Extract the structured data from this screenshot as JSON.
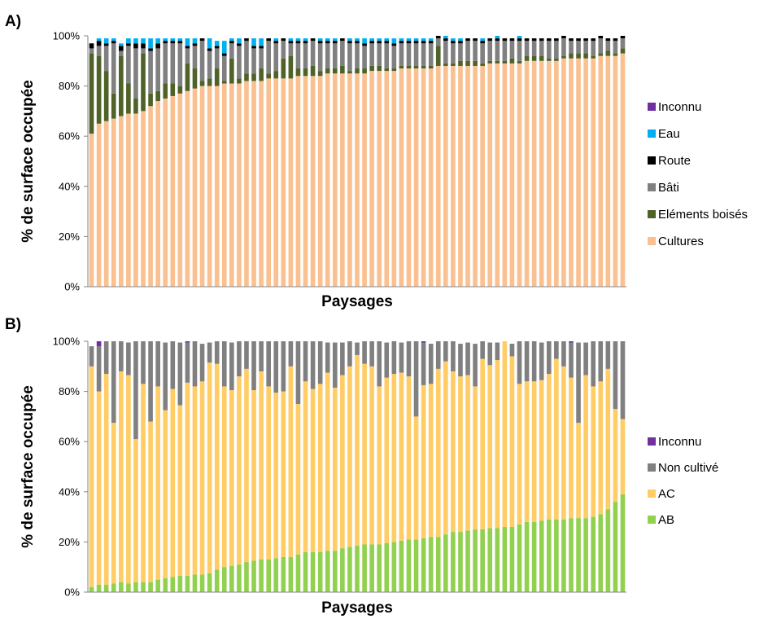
{
  "chart_data": [
    {
      "type": "bar",
      "stacked": true,
      "percent": true,
      "panel_label": "A)",
      "xlabel": "Paysages",
      "ylabel": "% de surface occupée",
      "ylim": [
        0,
        100
      ],
      "yticks": [
        "0%",
        "20%",
        "40%",
        "60%",
        "80%",
        "100%"
      ],
      "grid": false,
      "legend_position": "right",
      "legend_order": [
        "Inconnu",
        "Eau",
        "Route",
        "Bâti",
        "Eléments boisés",
        "Cultures"
      ],
      "series": [
        {
          "name": "Cultures",
          "color": "#FAC090",
          "values": [
            61,
            65,
            66,
            67,
            68,
            69,
            69,
            70,
            72,
            74,
            75,
            76,
            77,
            78,
            79,
            80,
            80,
            80,
            81,
            81,
            81,
            82,
            82,
            82,
            83,
            83,
            83,
            83,
            84,
            84,
            84,
            84,
            85,
            85,
            85,
            85,
            85,
            85,
            86,
            86,
            86,
            86,
            87,
            87,
            87,
            87,
            87,
            88,
            88,
            88,
            88,
            88,
            88,
            88,
            89,
            89,
            89,
            89,
            89,
            90,
            90,
            90,
            90,
            90,
            91,
            91,
            91,
            91,
            91,
            92,
            92,
            92,
            93
          ]
        },
        {
          "name": "Eléments boisés",
          "color": "#4F6228",
          "values": [
            32,
            27,
            20,
            10,
            24,
            12,
            6,
            23,
            5,
            4,
            6,
            5,
            3,
            11,
            8,
            2,
            3,
            7,
            1,
            10,
            2,
            3,
            3,
            5,
            2,
            3,
            8,
            9,
            3,
            3,
            4,
            2,
            2,
            2,
            3,
            1,
            2,
            2,
            2,
            2,
            1,
            1,
            1,
            1,
            1,
            1,
            1,
            8,
            1,
            1,
            2,
            2,
            2,
            1,
            1,
            1,
            1,
            2,
            1,
            2,
            2,
            2,
            1,
            1,
            1,
            2,
            2,
            2,
            1,
            1,
            2,
            1,
            2
          ]
        },
        {
          "name": "Bâti",
          "color": "#808080",
          "values": [
            2,
            4,
            10,
            20,
            2,
            15,
            20,
            2,
            17,
            17,
            16,
            16,
            17,
            6,
            9,
            16,
            11,
            8,
            10,
            6,
            13,
            13,
            10,
            8,
            13,
            11,
            7,
            5,
            10,
            10,
            10,
            11,
            10,
            10,
            10,
            11,
            10,
            9,
            9,
            9,
            10,
            9,
            9,
            9,
            9,
            9,
            9,
            3,
            9,
            8,
            7,
            8,
            8,
            8,
            8,
            8,
            8,
            7,
            8,
            6,
            6,
            6,
            7,
            7,
            7,
            5,
            5,
            5,
            6,
            6,
            4,
            5,
            4
          ]
        },
        {
          "name": "Route",
          "color": "#000000",
          "values": [
            2,
            2,
            1,
            1,
            2,
            1,
            2,
            2,
            1,
            2,
            1,
            1,
            1,
            1,
            1,
            1,
            1,
            1,
            1,
            1,
            1,
            1,
            1,
            1,
            1,
            1,
            1,
            1,
            1,
            1,
            1,
            1,
            1,
            1,
            1,
            1,
            1,
            1,
            1,
            1,
            1,
            1,
            1,
            1,
            1,
            1,
            1,
            1,
            1,
            1,
            1,
            1,
            1,
            1,
            1,
            1,
            1,
            1,
            1,
            1,
            1,
            1,
            1,
            1,
            1,
            1,
            1,
            1,
            1,
            1,
            1,
            1,
            1
          ]
        },
        {
          "name": "Eau",
          "color": "#00B0F0",
          "values": [
            0,
            1,
            2,
            1,
            1,
            2,
            2,
            2,
            4,
            2,
            1,
            1,
            1,
            3,
            2,
            0,
            4,
            2,
            5,
            1,
            2,
            0,
            3,
            3,
            0,
            1,
            0,
            1,
            1,
            1,
            0,
            1,
            1,
            1,
            0,
            1,
            1,
            2,
            1,
            1,
            1,
            2,
            1,
            1,
            1,
            1,
            1,
            0,
            1,
            1,
            1,
            0,
            0,
            1,
            0,
            1,
            0,
            0,
            1,
            0,
            0,
            0,
            0,
            0,
            0,
            0,
            0,
            0,
            0,
            0,
            0,
            0,
            0
          ]
        },
        {
          "name": "Inconnu",
          "color": "#7030A0",
          "values": [
            0,
            0,
            0,
            0,
            0,
            0,
            0,
            0,
            0,
            0,
            0,
            0,
            0,
            0,
            0,
            0,
            0,
            0,
            0,
            0,
            0,
            0,
            0,
            0,
            0,
            0,
            0,
            0,
            0,
            0,
            0,
            0,
            0,
            0,
            0,
            0,
            0,
            0,
            0,
            0,
            0,
            0,
            0,
            0,
            0,
            0,
            0,
            0,
            0,
            0,
            0,
            0,
            0,
            0,
            0,
            0,
            0,
            0,
            0,
            0,
            0,
            0,
            0,
            0,
            0,
            0,
            0,
            0,
            0,
            0,
            0,
            0,
            0
          ]
        }
      ]
    },
    {
      "type": "bar",
      "stacked": true,
      "percent": true,
      "panel_label": "B)",
      "xlabel": "Paysages",
      "ylabel": "% de surface occupée",
      "ylim": [
        0,
        100
      ],
      "yticks": [
        "0%",
        "20%",
        "40%",
        "60%",
        "80%",
        "100%"
      ],
      "grid": false,
      "legend_position": "right",
      "legend_order": [
        "Inconnu",
        "Non cultivé",
        "AC",
        "AB"
      ],
      "series": [
        {
          "name": "AB",
          "color": "#92D050",
          "values": [
            2,
            3,
            3,
            3.5,
            4,
            3.5,
            4,
            4,
            4,
            5,
            5.5,
            6,
            6.5,
            6.5,
            7,
            7,
            7.5,
            9,
            10,
            10.5,
            11,
            12,
            12.5,
            13,
            13,
            13.5,
            14,
            14,
            15,
            16,
            16,
            16,
            16.5,
            16.5,
            17.5,
            18,
            18.5,
            19,
            19,
            19,
            19.5,
            20,
            20.5,
            21,
            21,
            21.5,
            22,
            22,
            23,
            24,
            24,
            24.5,
            25,
            25,
            25.5,
            25.5,
            26,
            26,
            27,
            28,
            28,
            28.5,
            29,
            29,
            29,
            29.5,
            29.5,
            29.5,
            30,
            31,
            33,
            36,
            39
          ]
        },
        {
          "name": "AC",
          "color": "#FFCC66",
          "values": [
            88,
            77,
            84,
            64,
            84,
            83,
            57,
            79,
            64,
            77,
            67,
            75,
            68,
            77,
            75,
            77,
            84,
            82,
            72,
            70,
            75,
            77,
            68,
            75,
            69,
            66,
            66,
            76,
            60,
            68,
            65,
            67,
            71,
            65,
            69,
            72,
            76,
            72,
            71,
            63,
            66,
            67,
            67,
            65,
            49,
            61,
            61,
            67,
            69,
            64,
            62,
            62,
            57,
            68,
            65,
            67,
            74,
            68,
            56,
            56,
            56,
            56,
            58,
            64,
            61,
            56,
            38,
            57,
            52,
            53,
            56,
            37,
            30
          ]
        },
        {
          "name": "Non cultivé",
          "color": "#808080",
          "values": [
            8,
            18,
            13,
            33,
            12,
            13,
            39,
            17,
            32,
            18,
            27,
            19,
            25,
            16,
            18,
            15,
            8,
            9,
            18,
            19,
            14,
            11,
            20,
            12,
            18,
            21,
            20,
            10,
            25,
            16,
            19,
            17,
            12,
            18,
            13,
            10,
            5,
            9,
            10,
            18,
            14,
            13,
            12,
            14,
            30,
            17,
            16,
            11,
            8,
            12,
            13,
            13,
            17,
            7,
            9,
            7,
            0,
            5,
            17,
            16,
            16,
            15,
            13,
            7,
            10,
            14,
            32,
            13,
            18,
            16,
            11,
            27,
            31
          ]
        },
        {
          "name": "Inconnu",
          "color": "#7030A0",
          "values": [
            0,
            2,
            0,
            0,
            0,
            0,
            0,
            0,
            0,
            1,
            0,
            0,
            0,
            1,
            0,
            0,
            0,
            0,
            0,
            0,
            0,
            0,
            0,
            0,
            0,
            0,
            0,
            0,
            0,
            0,
            1,
            0,
            0,
            0,
            0,
            0,
            0,
            0,
            0,
            0,
            0,
            0,
            0,
            0,
            0,
            1,
            0,
            0,
            0,
            0,
            0,
            0,
            0,
            0,
            0,
            0,
            0,
            0,
            0,
            0,
            0,
            0,
            0,
            0,
            0,
            1,
            0,
            0,
            0,
            0,
            0,
            0,
            0
          ]
        }
      ]
    }
  ]
}
